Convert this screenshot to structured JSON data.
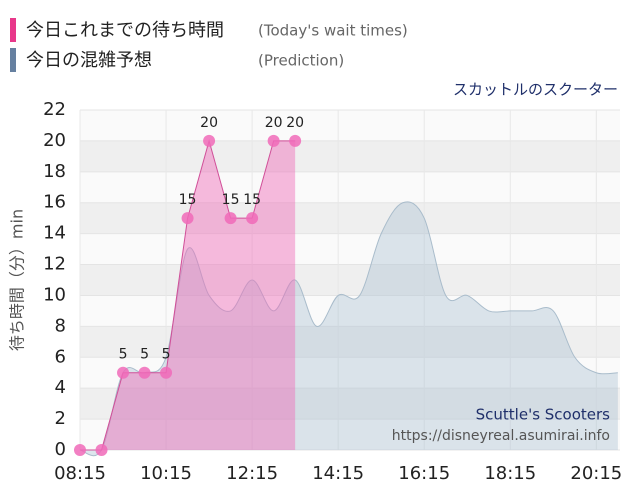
{
  "chart_data": {
    "type": "area",
    "legend": [
      {
        "name": "今日これまでの待ち時間",
        "note": "(Today's wait times)"
      },
      {
        "name": "今日の混雑予想",
        "note": "(Prediction)"
      }
    ],
    "subtitle": "スカットルのスクーター",
    "ylabel": "待ち時間（分）min",
    "watermark": [
      "Scuttle's Scooters",
      "https://disneyreal.asumirai.info"
    ],
    "xlim": [
      8.25,
      20.8
    ],
    "xticks": [
      {
        "value": 8.25,
        "label": "08:15"
      },
      {
        "value": 10.25,
        "label": "10:15"
      },
      {
        "value": 12.25,
        "label": "12:15"
      },
      {
        "value": 14.25,
        "label": "14:15"
      },
      {
        "value": 16.25,
        "label": "16:15"
      },
      {
        "value": 18.25,
        "label": "18:15"
      },
      {
        "value": 20.25,
        "label": "20:15"
      }
    ],
    "ylim": [
      0,
      22
    ],
    "yticks": [
      0,
      2,
      4,
      6,
      8,
      10,
      12,
      14,
      16,
      18,
      20,
      22
    ],
    "grid": true,
    "series": [
      {
        "name": "今日の混雑予想",
        "color": "#a9c0d2",
        "x": [
          8.25,
          8.75,
          9.25,
          9.75,
          10.25,
          10.75,
          11.25,
          11.75,
          12.25,
          12.75,
          13.25,
          13.75,
          14.25,
          14.75,
          15.25,
          15.75,
          16.25,
          16.75,
          17.25,
          17.75,
          18.25,
          18.75,
          19.25,
          19.75,
          20.25,
          20.75
        ],
        "values": [
          0,
          0,
          5,
          5,
          6,
          13,
          10,
          9,
          11,
          9,
          11,
          8,
          10,
          10,
          14,
          16,
          15,
          10,
          10,
          9,
          9,
          9,
          9,
          6,
          5,
          5
        ]
      },
      {
        "name": "今日これまでの待ち時間",
        "color": "#f06ab8",
        "x": [
          8.25,
          8.75,
          9.25,
          9.75,
          10.25,
          10.75,
          11.25,
          11.75,
          12.25,
          12.75,
          13.25
        ],
        "values": [
          0,
          0,
          5,
          5,
          5,
          15,
          20,
          15,
          15,
          20,
          20
        ]
      }
    ]
  }
}
